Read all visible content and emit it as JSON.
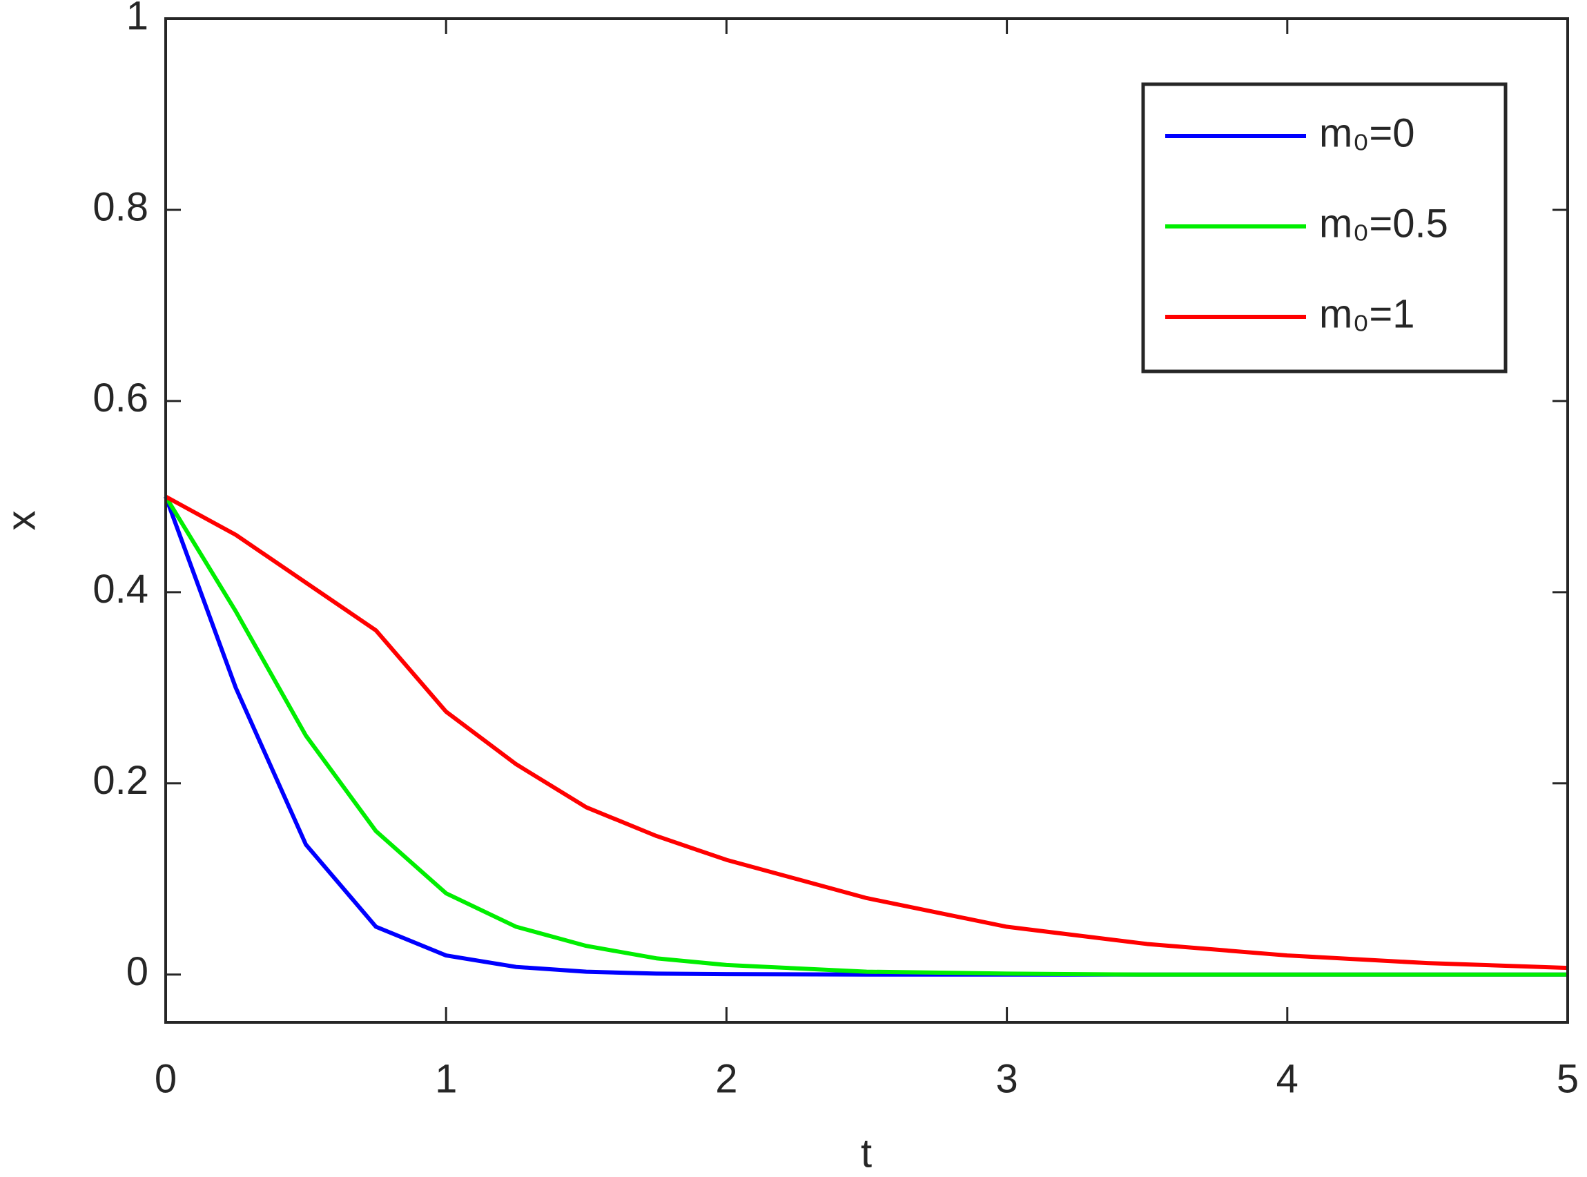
{
  "chart_data": {
    "type": "line",
    "xlabel": "t",
    "ylabel": "x",
    "x": [
      0,
      0.25,
      0.5,
      0.75,
      1,
      1.25,
      1.5,
      1.75,
      2,
      2.5,
      3,
      3.5,
      4,
      4.5,
      5
    ],
    "series": [
      {
        "name": "m₀=0",
        "color": "#0000ff",
        "values": [
          0.5,
          0.3,
          0.136,
          0.05,
          0.02,
          0.008,
          0.003,
          0.001,
          0.0005,
          0,
          0,
          0,
          0,
          0,
          0
        ]
      },
      {
        "name": "m₀=0.5",
        "color": "#00ee00",
        "values": [
          0.5,
          0.38,
          0.25,
          0.15,
          0.085,
          0.05,
          0.03,
          0.017,
          0.01,
          0.003,
          0.001,
          0,
          0,
          0,
          0
        ]
      },
      {
        "name": "m₀=1",
        "color": "#ff0000",
        "values": [
          0.5,
          0.46,
          0.41,
          0.36,
          0.275,
          0.22,
          0.175,
          0.145,
          0.12,
          0.08,
          0.05,
          0.032,
          0.02,
          0.012,
          0.007
        ]
      }
    ],
    "xlim": [
      0,
      5
    ],
    "xticks": [
      0,
      1,
      2,
      3,
      4,
      5
    ],
    "ylim": [
      -0.05,
      1
    ],
    "yticks": [
      0,
      0.2,
      0.4,
      0.6,
      0.8,
      1
    ],
    "legend": "top-right"
  }
}
